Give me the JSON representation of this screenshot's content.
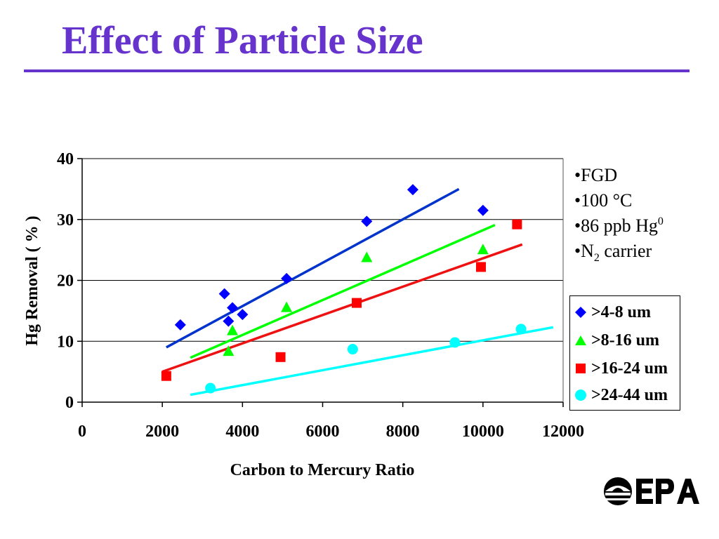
{
  "slide": {
    "title": "Effect of Particle Size",
    "notes": {
      "fgd": "•FGD",
      "temp": "•100 °C",
      "hg_prefix": "•86 ppb Hg",
      "hg_sup": "0",
      "n2_prefix": "•N",
      "n2_sub": "2",
      "n2_suffix": " carrier"
    },
    "logo": "EPA",
    "colors": {
      "title": "#6633cc",
      "rule": "#6633cc"
    }
  },
  "chart_data": {
    "type": "scatter",
    "title": "",
    "xlabel": "Carbon to Mercury Ratio",
    "ylabel": "Hg Removal ( % )",
    "xlim": [
      0,
      12000
    ],
    "ylim": [
      0,
      40
    ],
    "xticks": [
      0,
      2000,
      4000,
      6000,
      8000,
      10000,
      12000
    ],
    "yticks": [
      0,
      10,
      20,
      30,
      40
    ],
    "grid": "horizontal",
    "legend_position": "right",
    "series": [
      {
        "name": ">4-8 um",
        "marker": "diamond",
        "color": "#0000ff",
        "points": [
          [
            2450,
            12.7
          ],
          [
            3550,
            17.8
          ],
          [
            3650,
            13.3
          ],
          [
            3750,
            15.5
          ],
          [
            4000,
            14.4
          ],
          [
            5100,
            20.3
          ],
          [
            7100,
            29.7
          ],
          [
            8250,
            34.9
          ],
          [
            10000,
            31.5
          ]
        ],
        "trendline": [
          [
            2100,
            9.0
          ],
          [
            9400,
            35.0
          ]
        ],
        "trendline_color": "#0033cc"
      },
      {
        "name": ">8-16 um",
        "marker": "triangle",
        "color": "#00ff00",
        "points": [
          [
            3650,
            8.4
          ],
          [
            3750,
            11.8
          ],
          [
            5100,
            15.6
          ],
          [
            7100,
            23.8
          ],
          [
            10000,
            25.1
          ]
        ],
        "trendline": [
          [
            2700,
            7.3
          ],
          [
            10300,
            29.1
          ]
        ],
        "trendline_color": "#00ff00"
      },
      {
        "name": ">16-24 um",
        "marker": "square",
        "color": "#ff0000",
        "points": [
          [
            2100,
            4.3
          ],
          [
            4950,
            7.4
          ],
          [
            6850,
            16.3
          ],
          [
            9950,
            22.2
          ],
          [
            10850,
            29.2
          ]
        ],
        "trendline": [
          [
            2000,
            5.0
          ],
          [
            10980,
            25.9
          ]
        ],
        "trendline_color": "#ee1111"
      },
      {
        "name": ">24-44 um",
        "marker": "circle",
        "color": "#00ffff",
        "points": [
          [
            3200,
            2.3
          ],
          [
            6750,
            8.7
          ],
          [
            9300,
            9.8
          ],
          [
            10950,
            12.0
          ]
        ],
        "trendline": [
          [
            2700,
            1.2
          ],
          [
            11750,
            12.3
          ]
        ],
        "trendline_color": "#00ffff"
      }
    ]
  }
}
